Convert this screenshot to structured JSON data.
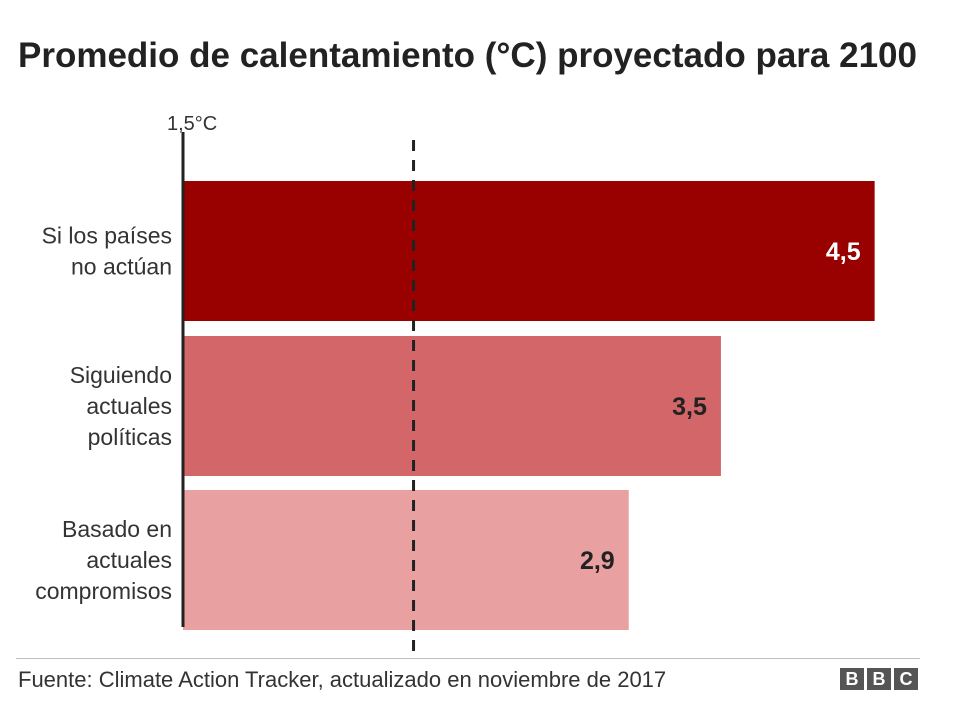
{
  "chart_data": {
    "type": "bar",
    "orientation": "horizontal",
    "title": "Promedio de calentamiento (°C) proyectado para 2100",
    "categories": [
      [
        "Si los países",
        "no actúan"
      ],
      [
        "Siguiendo",
        "actuales",
        "políticas"
      ],
      [
        "Basado en",
        "actuales",
        "compromisos"
      ]
    ],
    "values": [
      4.5,
      3.5,
      2.9
    ],
    "value_labels": [
      "4,5",
      "3,5",
      "2,9"
    ],
    "colors": [
      "#990000",
      "#d36668",
      "#e8a0a1"
    ],
    "value_label_colors": [
      "#ffffff",
      "#222222",
      "#222222"
    ],
    "xlim": [
      0,
      4.6
    ],
    "reference_line": {
      "value": 1.5,
      "label": "1,5°C",
      "style": "dashed"
    },
    "grid": false,
    "legend": "none"
  },
  "footer": {
    "source": "Fuente: Climate Action Tracker, actualizado en noviembre de 2017",
    "logo_letters": [
      "B",
      "B",
      "C"
    ]
  }
}
